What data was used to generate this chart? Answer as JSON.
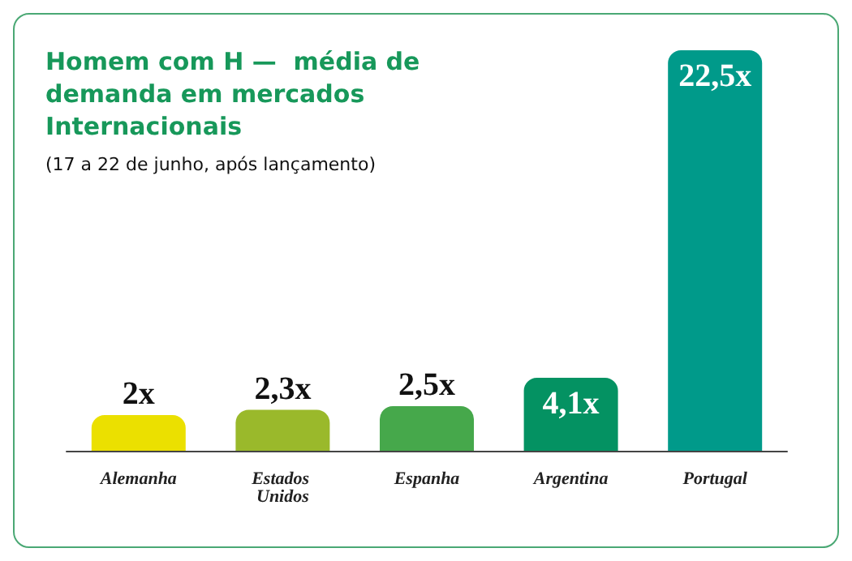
{
  "chart_data": {
    "type": "bar",
    "title": "Homem com H —  média de demanda em mercados Internacionais",
    "subtitle": "(17 a 22 de junho, após lançamento)",
    "categories": [
      "Alemanha",
      "Estados Unidos",
      "Espanha",
      "Argentina",
      "Portugal"
    ],
    "values": [
      2,
      2.3,
      2.5,
      4.1,
      22.5
    ],
    "colors": [
      "#ebe000",
      "#9ab92b",
      "#46a84b",
      "#049262",
      "#009a8a"
    ],
    "value_labels": [
      "2x",
      "2,3x",
      "2,5x",
      "4,1x",
      "22,5x"
    ]
  }
}
